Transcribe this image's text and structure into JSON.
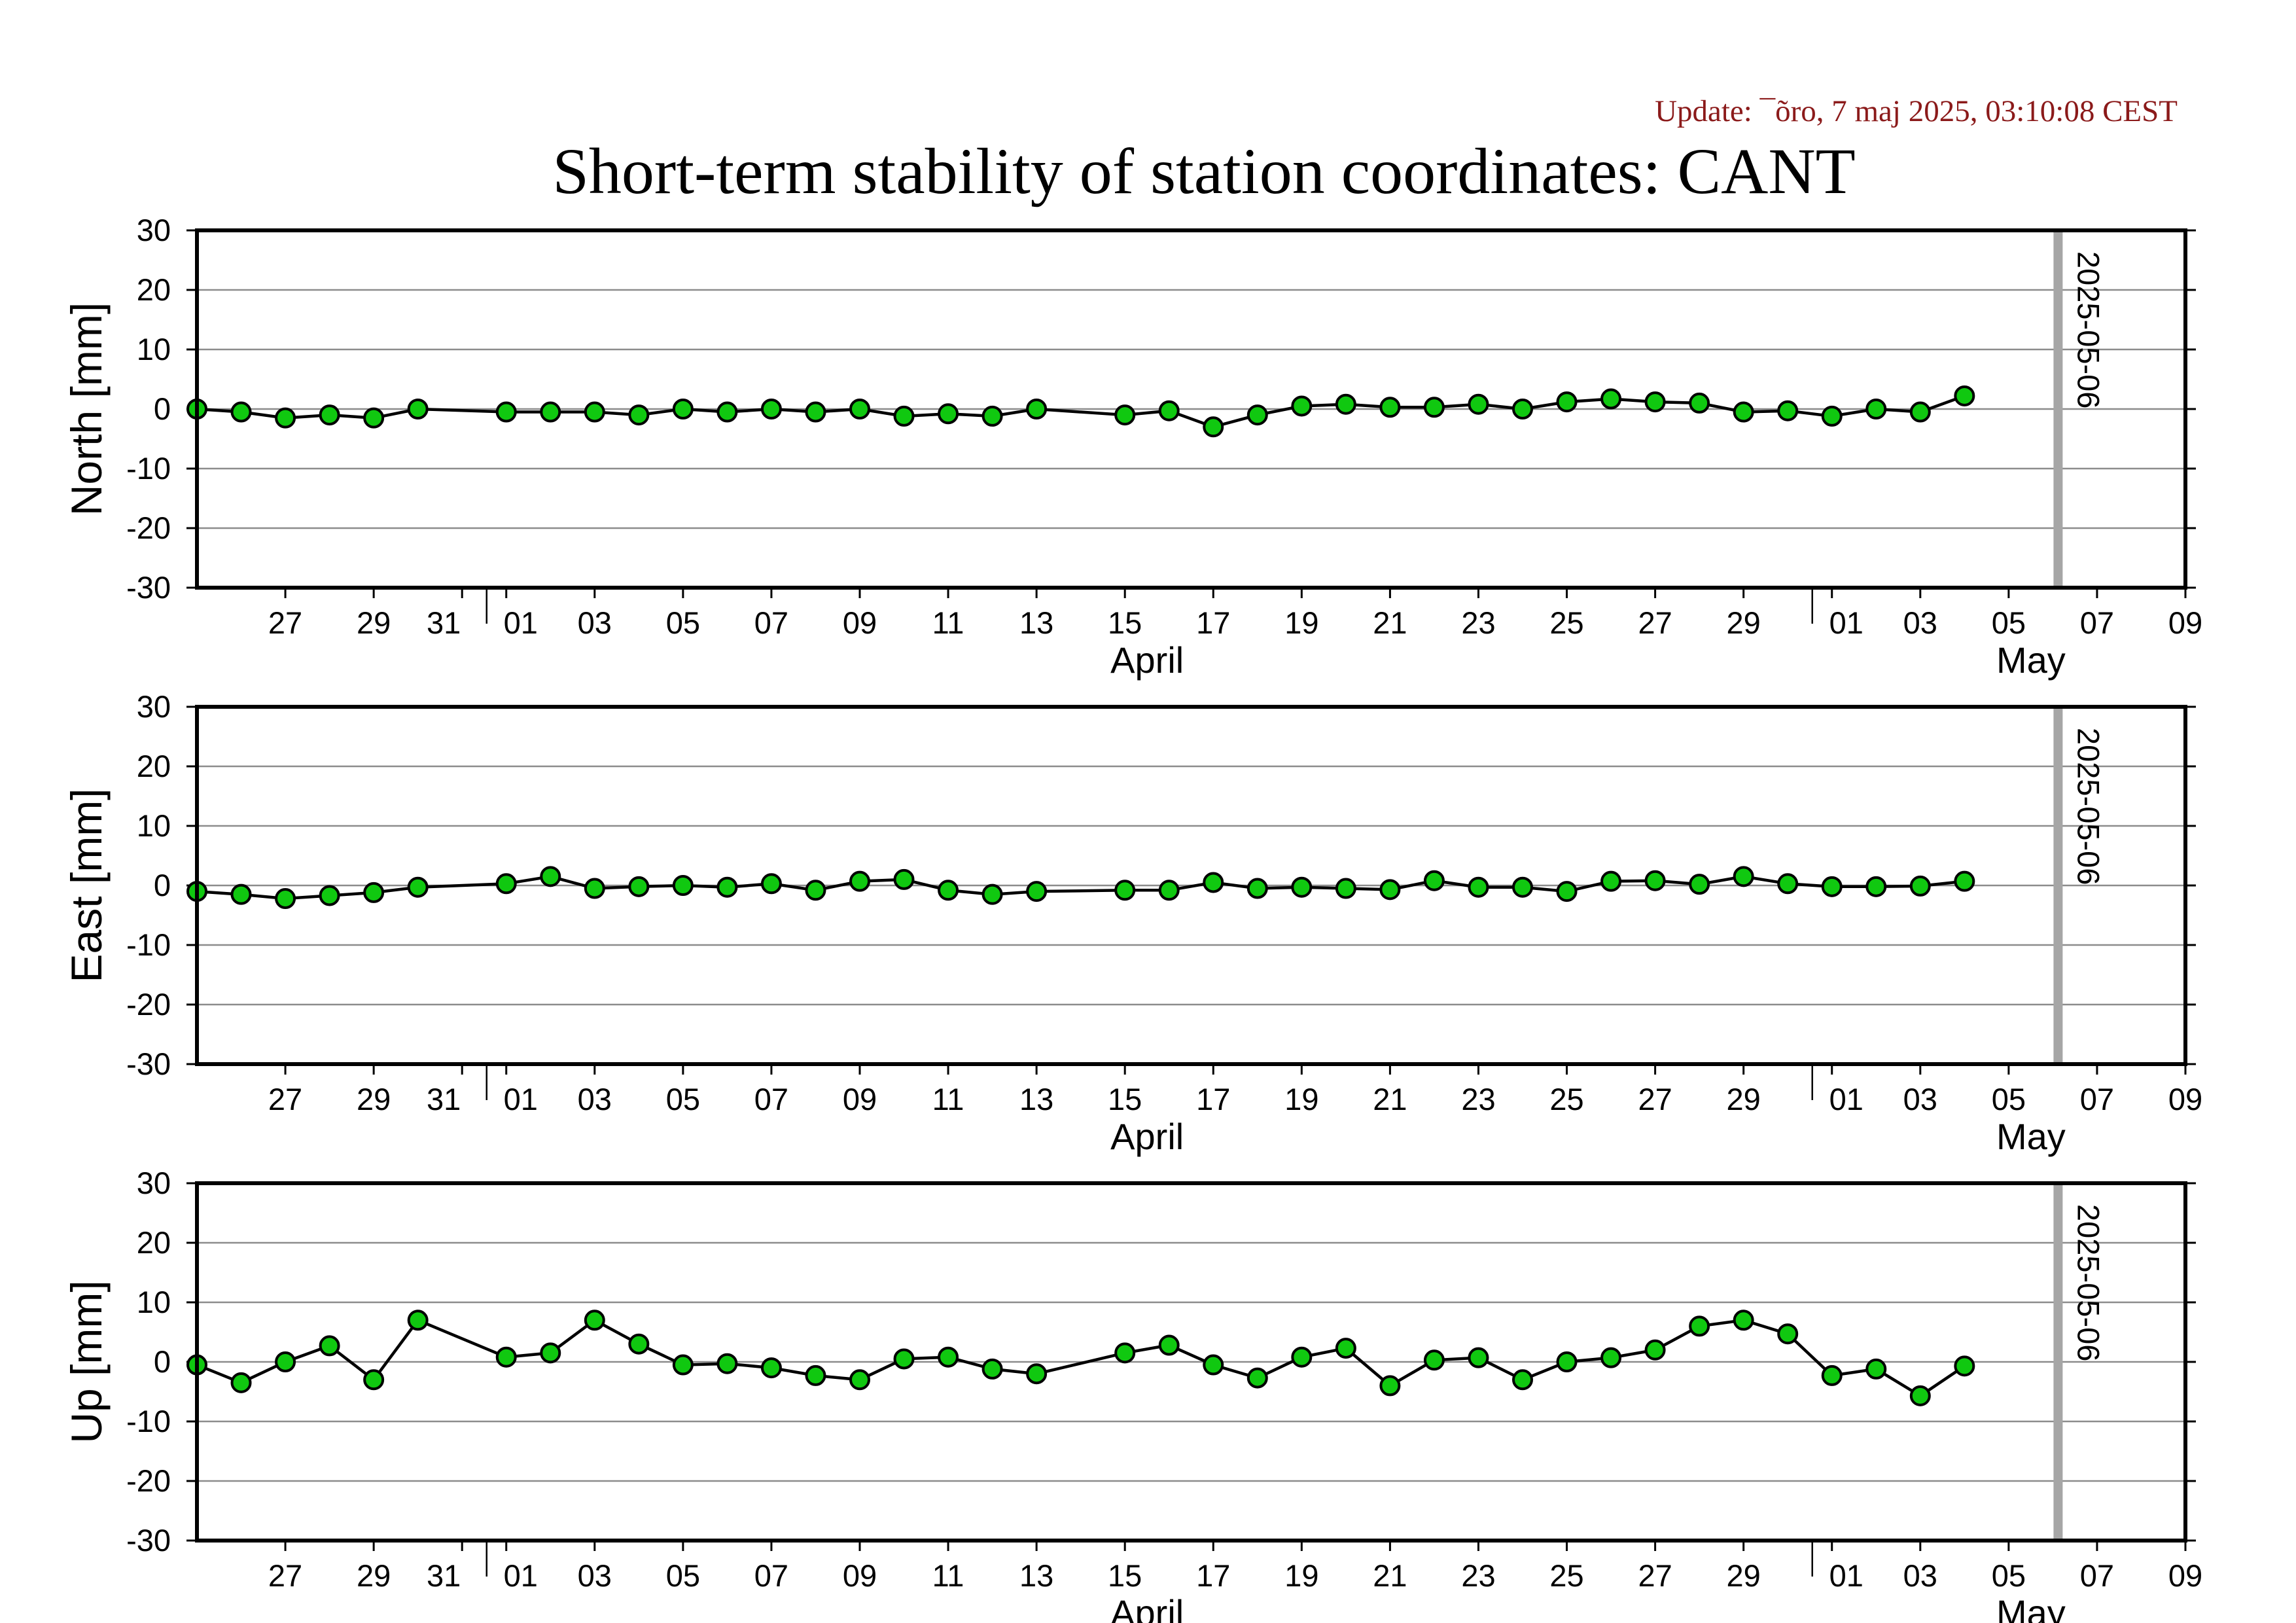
{
  "update_text": "Update: ¯õro, 7 maj 2025, 03:10:08 CEST",
  "title": "Short-term stability of station coordinates: CANT",
  "chart_data": [
    {
      "type": "line",
      "ylabel": "North [mm]",
      "ylim": [
        -30,
        30
      ],
      "yticks": [
        -30,
        -20,
        -10,
        0,
        10,
        20,
        30
      ],
      "grid": true,
      "marker_date": "2025-05-06",
      "marker_label": "2025-05-06",
      "xlim": [
        "2025-03-25",
        "2025-05-09"
      ],
      "x_tick_labels": [
        "27",
        "29",
        "31",
        "01",
        "03",
        "05",
        "07",
        "09",
        "11",
        "13",
        "15",
        "17",
        "19",
        "21",
        "23",
        "25",
        "27",
        "29",
        "01",
        "03",
        "05",
        "07",
        "09"
      ],
      "x_month_labels": [
        "April",
        "May"
      ],
      "series": [
        {
          "marker_color": "#10c810",
          "x": [
            "2025-03-25",
            "2025-03-26",
            "2025-03-27",
            "2025-03-28",
            "2025-03-29",
            "2025-03-30",
            "2025-04-01",
            "2025-04-02",
            "2025-04-03",
            "2025-04-04",
            "2025-04-05",
            "2025-04-06",
            "2025-04-07",
            "2025-04-08",
            "2025-04-09",
            "2025-04-10",
            "2025-04-11",
            "2025-04-12",
            "2025-04-13",
            "2025-04-15",
            "2025-04-16",
            "2025-04-17",
            "2025-04-18",
            "2025-04-19",
            "2025-04-20",
            "2025-04-21",
            "2025-04-22",
            "2025-04-23",
            "2025-04-24",
            "2025-04-25",
            "2025-04-26",
            "2025-04-27",
            "2025-04-28",
            "2025-04-29",
            "2025-04-30",
            "2025-05-01",
            "2025-05-02",
            "2025-05-03",
            "2025-05-04"
          ],
          "y": [
            0,
            -0.5,
            -1.5,
            -1,
            -1.5,
            0,
            -0.5,
            -0.5,
            -0.5,
            -1,
            0,
            -0.5,
            0,
            -0.5,
            0,
            -1.2,
            -0.8,
            -1.2,
            0,
            -1,
            -0.3,
            -3,
            -1,
            0.5,
            0.8,
            0.3,
            0.3,
            0.8,
            0,
            1.2,
            1.7,
            1.2,
            1,
            -0.5,
            -0.3,
            -1.2,
            0,
            -0.5,
            2.2
          ]
        }
      ]
    },
    {
      "type": "line",
      "ylabel": "East [mm]",
      "ylim": [
        -30,
        30
      ],
      "yticks": [
        -30,
        -20,
        -10,
        0,
        10,
        20,
        30
      ],
      "grid": true,
      "marker_date": "2025-05-06",
      "marker_label": "2025-05-06",
      "xlim": [
        "2025-03-25",
        "2025-05-09"
      ],
      "x_tick_labels": [
        "27",
        "29",
        "31",
        "01",
        "03",
        "05",
        "07",
        "09",
        "11",
        "13",
        "15",
        "17",
        "19",
        "21",
        "23",
        "25",
        "27",
        "29",
        "01",
        "03",
        "05",
        "07",
        "09"
      ],
      "x_month_labels": [
        "April",
        "May"
      ],
      "series": [
        {
          "marker_color": "#10c810",
          "x": [
            "2025-03-25",
            "2025-03-26",
            "2025-03-27",
            "2025-03-28",
            "2025-03-29",
            "2025-03-30",
            "2025-04-01",
            "2025-04-02",
            "2025-04-03",
            "2025-04-04",
            "2025-04-05",
            "2025-04-06",
            "2025-04-07",
            "2025-04-08",
            "2025-04-09",
            "2025-04-10",
            "2025-04-11",
            "2025-04-12",
            "2025-04-13",
            "2025-04-15",
            "2025-04-16",
            "2025-04-17",
            "2025-04-18",
            "2025-04-19",
            "2025-04-20",
            "2025-04-21",
            "2025-04-22",
            "2025-04-23",
            "2025-04-24",
            "2025-04-25",
            "2025-04-26",
            "2025-04-27",
            "2025-04-28",
            "2025-04-29",
            "2025-04-30",
            "2025-05-01",
            "2025-05-02",
            "2025-05-03",
            "2025-05-04"
          ],
          "y": [
            -1,
            -1.5,
            -2.2,
            -1.7,
            -1.2,
            -0.3,
            0.3,
            1.5,
            -0.5,
            -0.2,
            0,
            -0.3,
            0.3,
            -0.8,
            0.7,
            1,
            -0.8,
            -1.5,
            -1,
            -0.8,
            -0.8,
            0.5,
            -0.5,
            -0.3,
            -0.5,
            -0.7,
            0.8,
            -0.3,
            -0.3,
            -1,
            0.7,
            0.8,
            0.2,
            1.5,
            0.3,
            -0.2,
            -0.2,
            -0.1,
            0.7
          ]
        }
      ]
    },
    {
      "type": "line",
      "ylabel": "Up [mm]",
      "ylim": [
        -30,
        30
      ],
      "yticks": [
        -30,
        -20,
        -10,
        0,
        10,
        20,
        30
      ],
      "grid": true,
      "marker_date": "2025-05-06",
      "marker_label": "2025-05-06",
      "xlim": [
        "2025-03-25",
        "2025-05-09"
      ],
      "x_tick_labels": [
        "27",
        "29",
        "31",
        "01",
        "03",
        "05",
        "07",
        "09",
        "11",
        "13",
        "15",
        "17",
        "19",
        "21",
        "23",
        "25",
        "27",
        "29",
        "01",
        "03",
        "05",
        "07",
        "09"
      ],
      "x_month_labels": [
        "April",
        "May"
      ],
      "series": [
        {
          "marker_color": "#10c810",
          "x": [
            "2025-03-25",
            "2025-03-26",
            "2025-03-27",
            "2025-03-28",
            "2025-03-29",
            "2025-03-30",
            "2025-04-01",
            "2025-04-02",
            "2025-04-03",
            "2025-04-04",
            "2025-04-05",
            "2025-04-06",
            "2025-04-07",
            "2025-04-08",
            "2025-04-09",
            "2025-04-10",
            "2025-04-11",
            "2025-04-12",
            "2025-04-13",
            "2025-04-15",
            "2025-04-16",
            "2025-04-17",
            "2025-04-18",
            "2025-04-19",
            "2025-04-20",
            "2025-04-21",
            "2025-04-22",
            "2025-04-23",
            "2025-04-24",
            "2025-04-25",
            "2025-04-26",
            "2025-04-27",
            "2025-04-28",
            "2025-04-29",
            "2025-04-30",
            "2025-05-01",
            "2025-05-02",
            "2025-05-03",
            "2025-05-04"
          ],
          "y": [
            -0.5,
            -3.5,
            0,
            2.7,
            -3,
            7,
            0.8,
            1.5,
            7,
            3,
            -0.5,
            -0.3,
            -1,
            -2.3,
            -3,
            0.5,
            0.8,
            -1.2,
            -2,
            1.5,
            2.8,
            -0.5,
            -2.7,
            0.8,
            2.3,
            -4,
            0.3,
            0.7,
            -3,
            0,
            0.7,
            2,
            6,
            7,
            4.7,
            -2.3,
            -1.2,
            -5.7,
            -0.7
          ]
        }
      ]
    }
  ]
}
